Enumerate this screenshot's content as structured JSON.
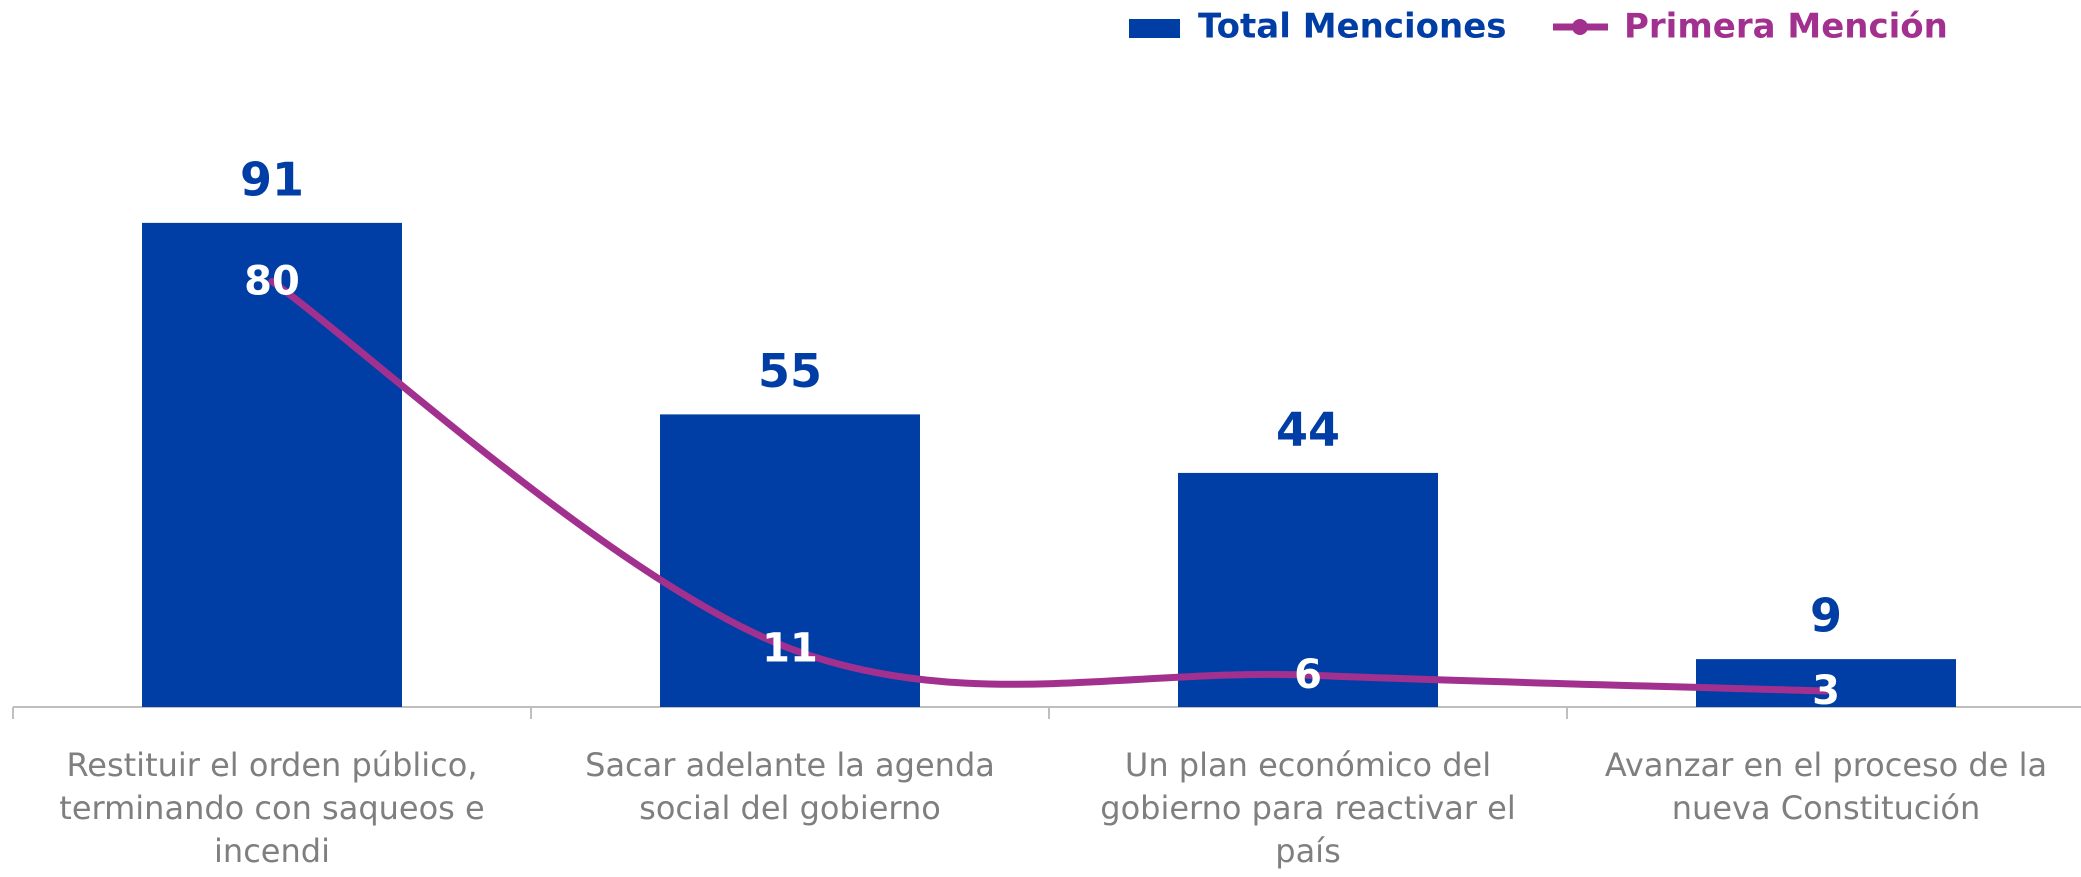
{
  "chart_data": {
    "type": "bar-line",
    "categories": [
      "Restituir el orden público, terminando con saqueos e incendi",
      "Sacar adelante la agenda social del gobierno",
      "Un plan económico del gobierno para reactivar el país",
      "Avanzar en el proceso de la nueva Constitución"
    ],
    "series": [
      {
        "name": "Total Menciones",
        "type": "bar",
        "color": "#003da5",
        "values": [
          91,
          55,
          44,
          9
        ]
      },
      {
        "name": "Primera Mención",
        "type": "line",
        "color": "#a2308f",
        "values": [
          80,
          11,
          6,
          3
        ]
      }
    ],
    "legend": "top-right"
  }
}
